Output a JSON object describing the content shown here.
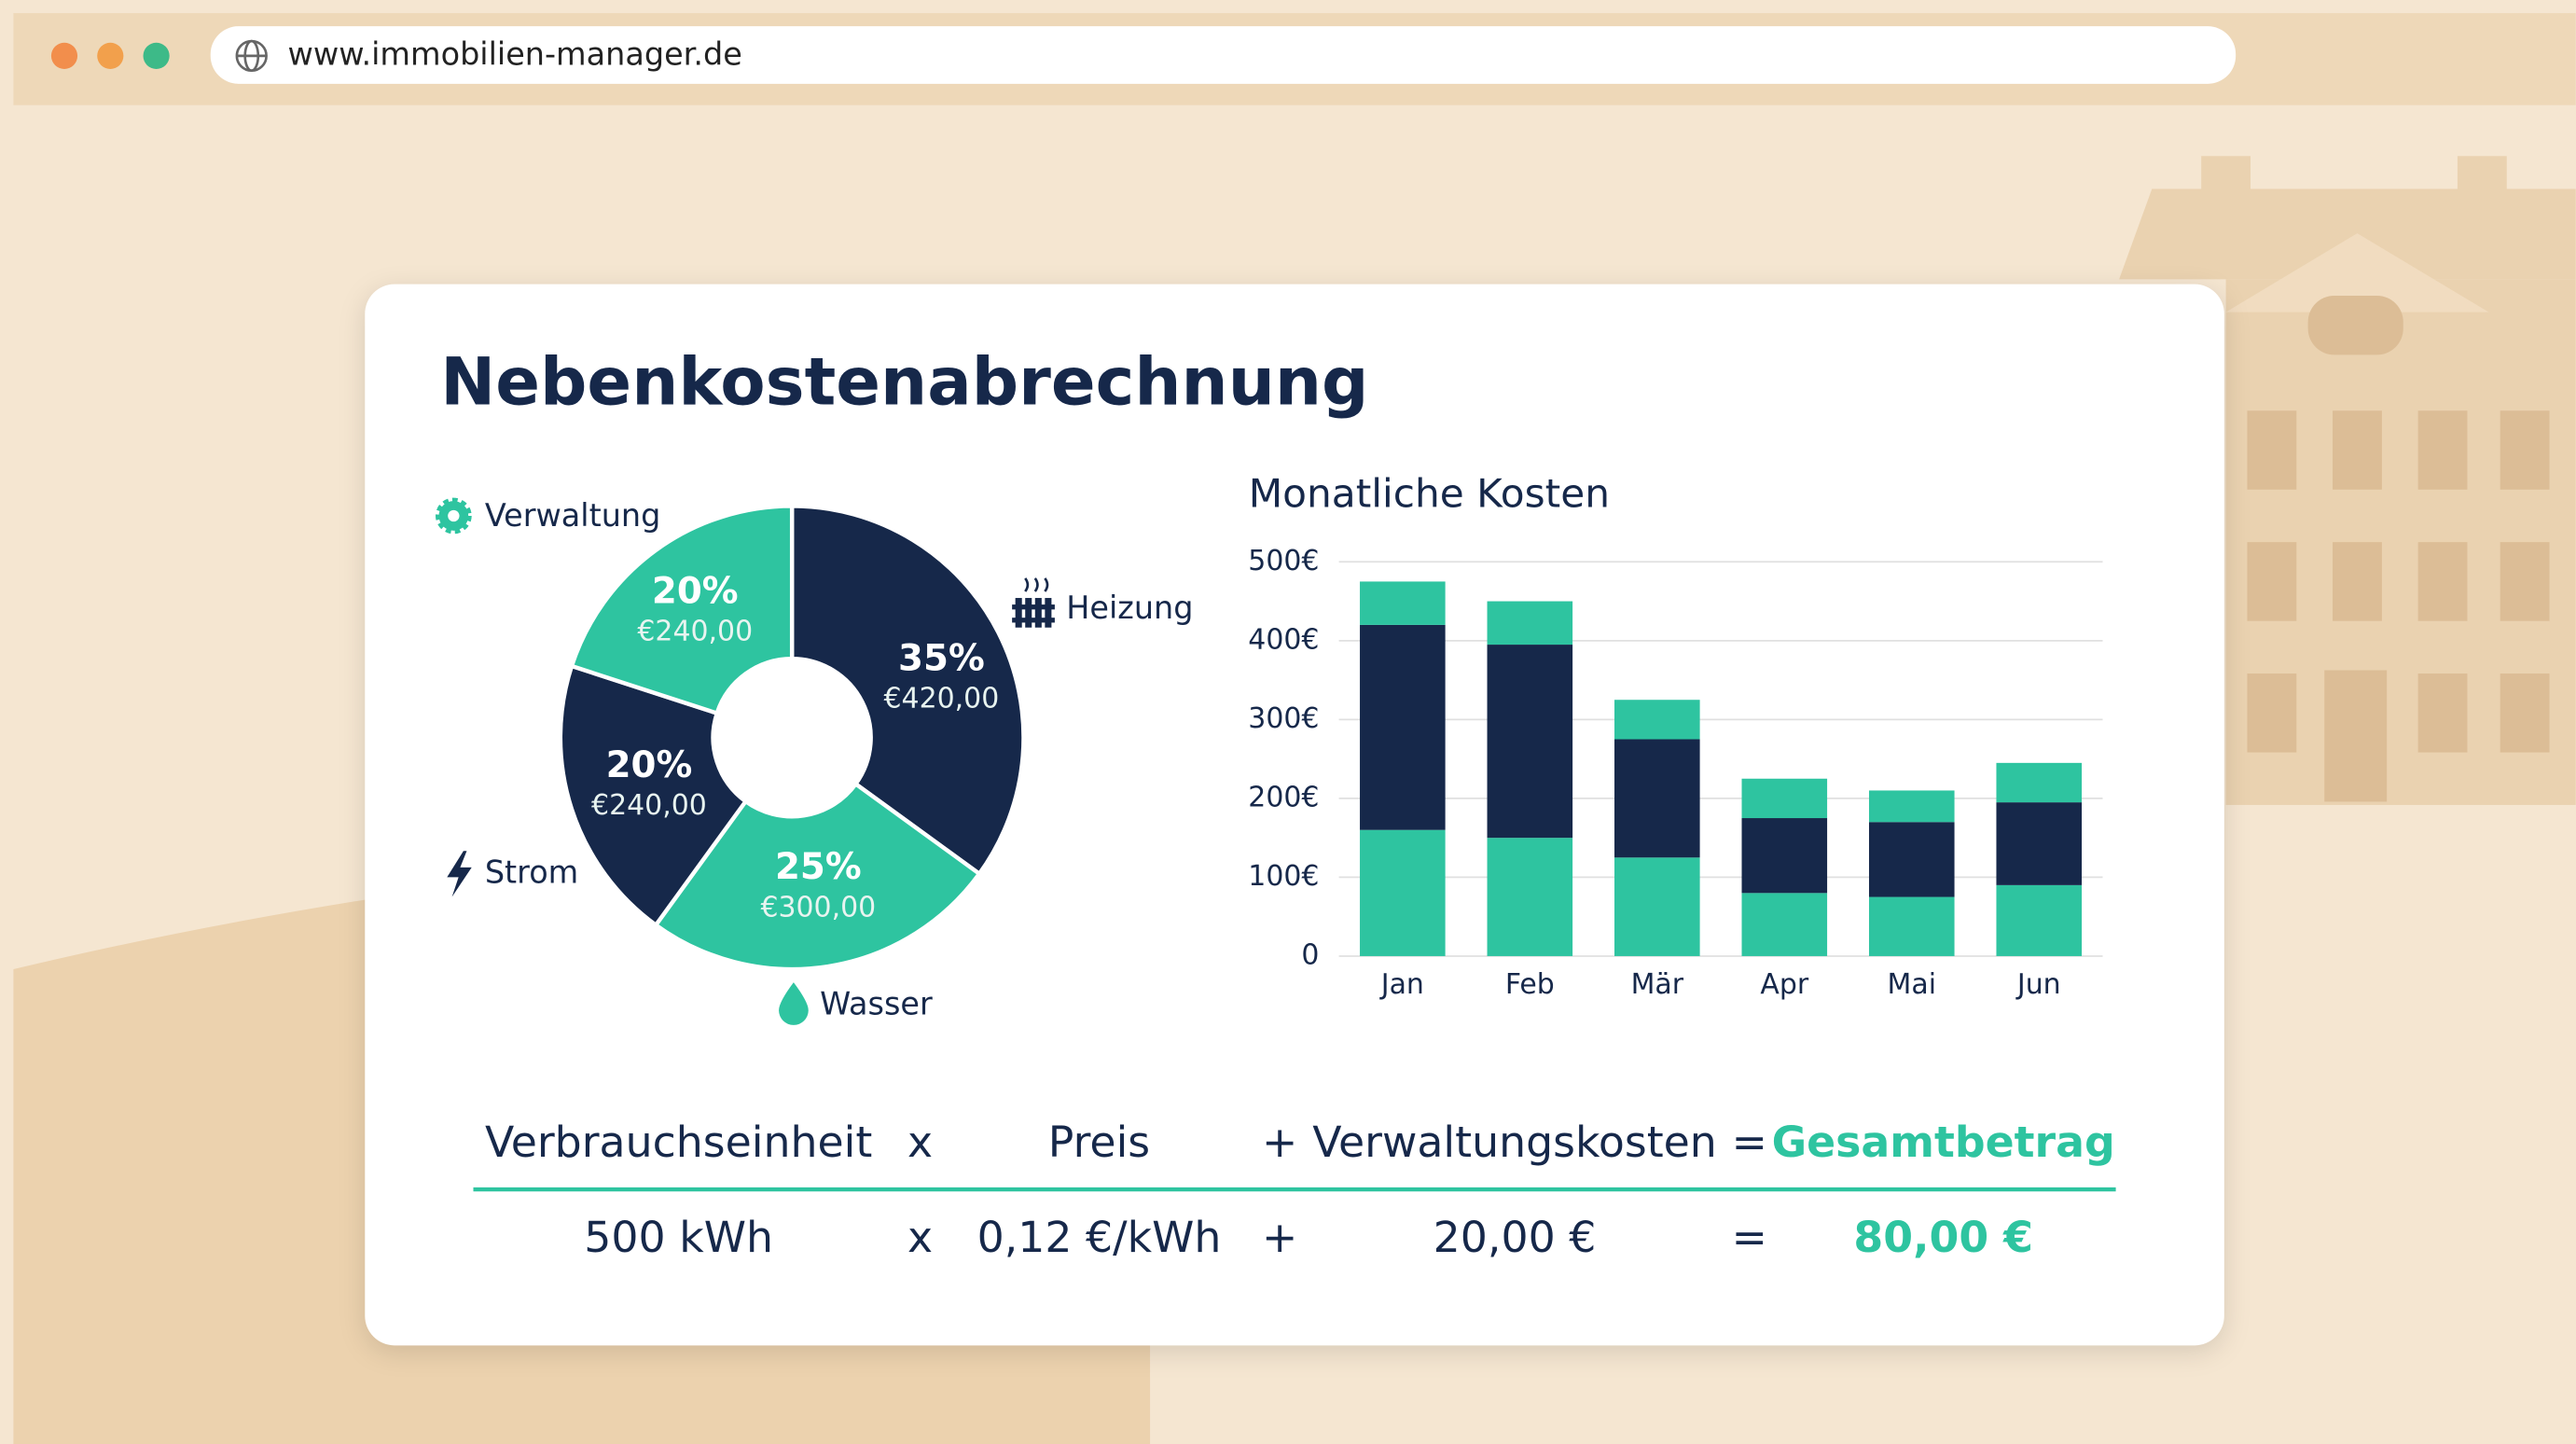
{
  "browser": {
    "url": "www.immobilien-manager.de"
  },
  "title": "Nebenkostenabrechnung",
  "chart_data": [
    {
      "type": "pie",
      "categories": [
        "Heizung",
        "Wasser",
        "Strom",
        "Verwaltung"
      ],
      "values": [
        35,
        25,
        20,
        20
      ],
      "value_labels": [
        "35%",
        "25%",
        "20%",
        "20%"
      ],
      "amounts": [
        420,
        300,
        240,
        240
      ],
      "amount_labels": [
        "€420,00",
        "€300,00",
        "€240,00",
        "€240,00"
      ],
      "colors": [
        "#16284a",
        "#2ec4a0",
        "#16284a",
        "#2ec4a0"
      ]
    },
    {
      "type": "bar",
      "stacked": true,
      "title": "Monatliche Kosten",
      "categories": [
        "Jan",
        "Feb",
        "Mär",
        "Apr",
        "Mai",
        "Jun"
      ],
      "series": [
        {
          "color": "#2ec4a0",
          "values": [
            160,
            150,
            125,
            80,
            75,
            90
          ]
        },
        {
          "color": "#16284a",
          "values": [
            260,
            245,
            150,
            95,
            95,
            105
          ]
        },
        {
          "color": "#2ec4a0",
          "values": [
            55,
            55,
            50,
            50,
            40,
            50
          ]
        }
      ],
      "ylim": [
        0,
        500
      ],
      "yticks": [
        0,
        {
          "value": 100,
          "label": "100€"
        },
        {
          "value": 200,
          "label": "200€"
        },
        {
          "value": 300,
          "label": "300€"
        },
        {
          "value": 400,
          "label": "400€"
        },
        {
          "value": 500,
          "label": "500€"
        }
      ],
      "grid": true
    }
  ],
  "formula": {
    "headers": [
      "Verbrauchseinheit",
      "x",
      "Preis",
      "+",
      "Verwaltungskosten",
      "=",
      "Gesamtbetrag"
    ],
    "values": [
      "500 kWh",
      "x",
      "0,12 €/kWh",
      "+",
      "20,00 €",
      "=",
      "80,00 €"
    ]
  }
}
